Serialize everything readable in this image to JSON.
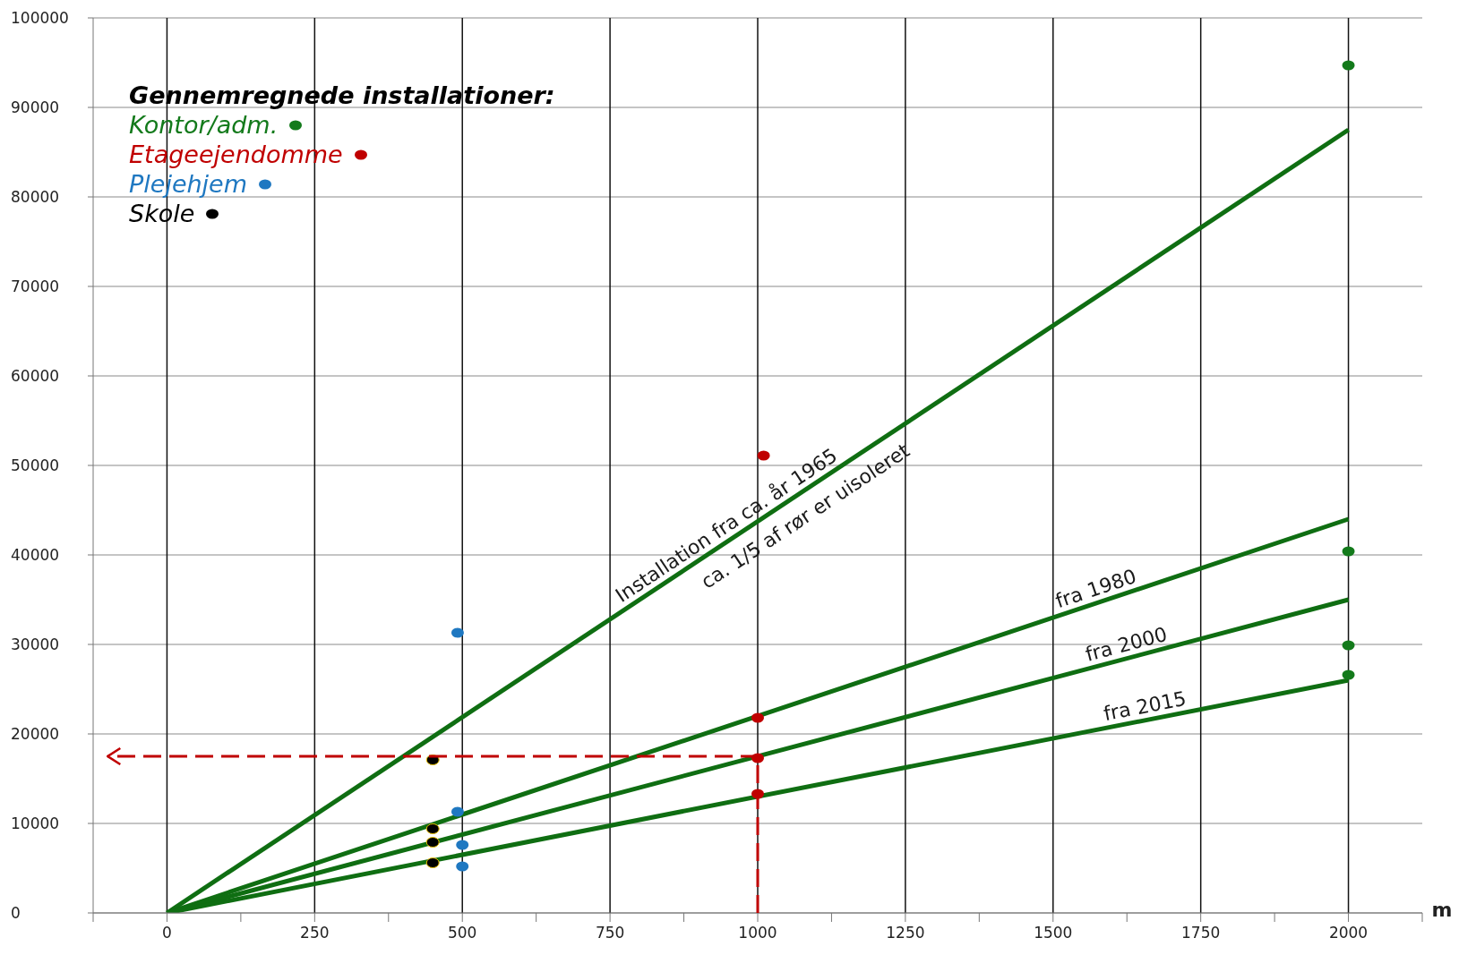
{
  "chart_data": {
    "type": "scatter",
    "legend_title": "Gennemregnede installationer:",
    "xlim": [
      -125,
      2125
    ],
    "xticks": [
      {
        "value": -125,
        "label": null
      },
      0,
      {
        "value": 125,
        "label": null
      },
      250,
      {
        "value": 375,
        "label": null
      },
      500,
      {
        "value": 625,
        "label": null
      },
      750,
      {
        "value": 875,
        "label": null
      },
      1000,
      {
        "value": 1125,
        "label": null
      },
      1250,
      {
        "value": 1375,
        "label": null
      },
      1500,
      {
        "value": 1625,
        "label": null
      },
      1750,
      {
        "value": 1875,
        "label": null
      },
      2000,
      {
        "value": 2125,
        "label": null
      }
    ],
    "ylim": [
      0,
      100000
    ],
    "yticks": [
      0,
      10000,
      20000,
      30000,
      40000,
      50000,
      60000,
      70000,
      80000,
      90000,
      100000
    ],
    "grid": true,
    "legend": "top left",
    "marker": "circle",
    "series": [
      {
        "type": "line",
        "color": "#0f6e12",
        "marker": "none",
        "x": [
          0,
          2000
        ],
        "values": [
          0,
          87500
        ]
      },
      {
        "type": "line",
        "color": "#0f6e12",
        "marker": "none",
        "x": [
          0,
          2000
        ],
        "values": [
          0,
          44000
        ]
      },
      {
        "type": "line",
        "color": "#0f6e12",
        "marker": "none",
        "x": [
          0,
          2000
        ],
        "values": [
          0,
          35000
        ]
      },
      {
        "type": "line",
        "color": "#0f6e12",
        "marker": "none",
        "x": [
          0,
          2000
        ],
        "values": [
          0,
          26000
        ]
      },
      {
        "type": "scatter",
        "name": "Kontor/adm.",
        "color": "#137a1b",
        "x": [
          2000,
          2000,
          2000,
          2000
        ],
        "values": [
          94700,
          40400,
          29900,
          26600
        ]
      },
      {
        "type": "scatter",
        "name": "Etageejendomme",
        "color": "#c00000",
        "x": [
          1010,
          1000,
          1000,
          1000
        ],
        "values": [
          51100,
          21800,
          17300,
          13300
        ]
      },
      {
        "type": "scatter",
        "name": "Plejehjem",
        "color": "#1f78c1",
        "x": [
          492,
          492,
          500,
          500
        ],
        "values": [
          31300,
          11300,
          7600,
          5200
        ]
      },
      {
        "type": "scatter",
        "name": "Skole",
        "color": "#000000",
        "x": [
          450,
          450,
          450,
          450
        ],
        "values": [
          17100,
          9400,
          7900,
          5600
        ]
      }
    ],
    "annotations": [
      "m",
      {
        "text": "Installation fra ca. år 1965",
        "x": 960,
        "y": 42000
      },
      {
        "text": "ca. 1/5 af rør er uisoleret",
        "x": 1060,
        "y": 46375
      },
      {
        "text": "fra 1980",
        "x": 1580,
        "y": 34760
      },
      {
        "text": "fra 2000",
        "x": 1630,
        "y": 28525
      },
      {
        "text": "fra 2015",
        "x": 1660,
        "y": 21580
      }
    ]
  }
}
